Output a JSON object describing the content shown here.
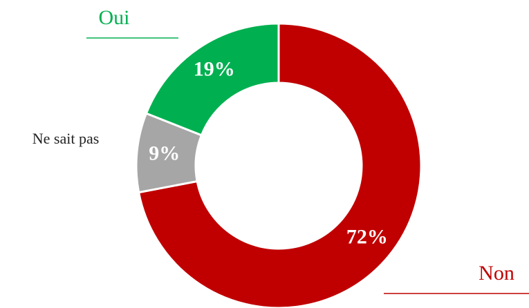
{
  "chart_data": {
    "type": "donut",
    "categories": [
      "Non",
      "Ne sait pas",
      "Oui"
    ],
    "values": [
      72,
      9,
      19
    ],
    "value_labels": [
      "72%",
      "9%",
      "19%"
    ],
    "colors": [
      "#c00000",
      "#a6a6a6",
      "#00b050"
    ]
  }
}
